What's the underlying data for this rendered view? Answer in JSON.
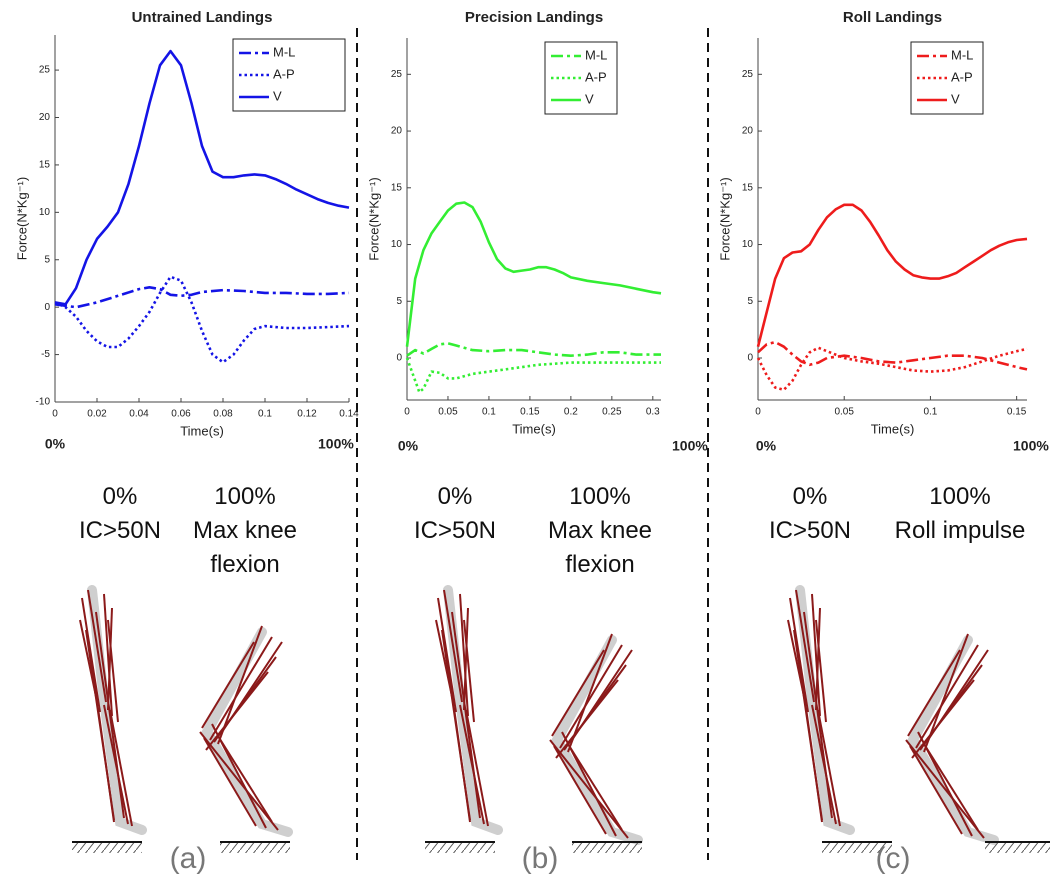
{
  "chart_data": [
    {
      "type": "line",
      "title": "Untrained Landings",
      "xlabel": "Time(s)",
      "ylabel": "Force(N*Kg⁻¹)",
      "annotations": [
        "0%",
        "100%"
      ],
      "xlim": [
        0,
        0.14
      ],
      "xticks": [
        0,
        0.02,
        0.04,
        0.06,
        0.08,
        0.1,
        0.12,
        0.14
      ],
      "ylim": [
        -10,
        28.7
      ],
      "yticks": [
        -10,
        -5,
        0,
        5,
        10,
        15,
        20,
        25
      ],
      "legend": "upper right",
      "series": [
        {
          "name": "M-L",
          "color": "#1414e6",
          "linestyle": "dashdot",
          "x": [
            0,
            0.01,
            0.02,
            0.03,
            0.04,
            0.045,
            0.05,
            0.055,
            0.06,
            0.065,
            0.07,
            0.08,
            0.09,
            0.1,
            0.11,
            0.12,
            0.13,
            0.14
          ],
          "values": [
            0.3,
            0,
            0.5,
            1.2,
            1.9,
            2.1,
            1.9,
            1.3,
            1.2,
            1.3,
            1.6,
            1.8,
            1.7,
            1.5,
            1.5,
            1.4,
            1.4,
            1.5
          ]
        },
        {
          "name": "A-P",
          "color": "#1414e6",
          "linestyle": "dotted",
          "x": [
            0,
            0.005,
            0.01,
            0.015,
            0.02,
            0.025,
            0.03,
            0.035,
            0.04,
            0.045,
            0.05,
            0.055,
            0.06,
            0.065,
            0.07,
            0.075,
            0.08,
            0.085,
            0.09,
            0.095,
            0.1,
            0.11,
            0.12,
            0.13,
            0.14
          ],
          "values": [
            0.5,
            0,
            -1,
            -2.5,
            -3.6,
            -4.2,
            -4.2,
            -3.3,
            -2,
            -0.5,
            1.5,
            3.2,
            2.8,
            0.5,
            -2.5,
            -5,
            -5.8,
            -5,
            -3.5,
            -2.3,
            -2,
            -2.2,
            -2.2,
            -2.1,
            -2
          ]
        },
        {
          "name": "V",
          "color": "#1414e6",
          "linestyle": "solid",
          "x": [
            0,
            0.005,
            0.01,
            0.015,
            0.02,
            0.025,
            0.03,
            0.035,
            0.04,
            0.045,
            0.05,
            0.055,
            0.06,
            0.065,
            0.07,
            0.075,
            0.08,
            0.085,
            0.09,
            0.095,
            0.1,
            0.105,
            0.11,
            0.115,
            0.12,
            0.125,
            0.13,
            0.135,
            0.14
          ],
          "values": [
            0.5,
            0.3,
            2,
            5,
            7.2,
            8.5,
            10,
            13,
            17,
            21.5,
            25.5,
            27,
            25.5,
            21.5,
            17,
            14.3,
            13.7,
            13.7,
            13.9,
            14,
            13.9,
            13.5,
            13,
            12.4,
            11.9,
            11.4,
            11,
            10.7,
            10.5
          ]
        }
      ]
    },
    {
      "type": "line",
      "title": "Precision Landings",
      "xlabel": "Time(s)",
      "ylabel": "Force(N*Kg⁻¹)",
      "annotations": [
        "0%",
        "100%"
      ],
      "xlim": [
        0,
        0.31
      ],
      "xticks": [
        0,
        0.05,
        0.1,
        0.15,
        0.2,
        0.25,
        0.3
      ],
      "ylim": [
        -3.7,
        28.2
      ],
      "yticks": [
        0,
        5,
        10,
        15,
        20,
        25
      ],
      "legend": "upper right",
      "series": [
        {
          "name": "M-L",
          "color": "#33ee33",
          "linestyle": "dashdot",
          "x": [
            0,
            0.01,
            0.02,
            0.03,
            0.04,
            0.05,
            0.06,
            0.08,
            0.1,
            0.12,
            0.14,
            0.16,
            0.18,
            0.2,
            0.22,
            0.24,
            0.26,
            0.28,
            0.31
          ],
          "values": [
            0.2,
            0.7,
            0.4,
            0.8,
            1.2,
            1.3,
            1.1,
            0.7,
            0.6,
            0.7,
            0.7,
            0.5,
            0.3,
            0.2,
            0.3,
            0.5,
            0.5,
            0.3,
            0.3
          ]
        },
        {
          "name": "A-P",
          "color": "#33ee33",
          "linestyle": "dotted",
          "x": [
            0,
            0.01,
            0.015,
            0.02,
            0.03,
            0.04,
            0.05,
            0.06,
            0.08,
            0.1,
            0.12,
            0.14,
            0.16,
            0.2,
            0.25,
            0.31
          ],
          "values": [
            0,
            -2,
            -3,
            -2.7,
            -1.2,
            -1.3,
            -1.8,
            -1.8,
            -1.4,
            -1.2,
            -1,
            -0.8,
            -0.6,
            -0.4,
            -0.4,
            -0.4
          ]
        },
        {
          "name": "V",
          "color": "#33ee33",
          "linestyle": "solid",
          "x": [
            0,
            0.01,
            0.02,
            0.03,
            0.04,
            0.05,
            0.06,
            0.07,
            0.08,
            0.09,
            0.1,
            0.11,
            0.12,
            0.13,
            0.14,
            0.15,
            0.16,
            0.17,
            0.18,
            0.19,
            0.2,
            0.22,
            0.24,
            0.26,
            0.28,
            0.3,
            0.31
          ],
          "values": [
            1,
            7,
            9.5,
            11,
            12,
            13,
            13.6,
            13.7,
            13.3,
            12,
            10.2,
            8.7,
            7.9,
            7.6,
            7.7,
            7.8,
            8,
            8,
            7.8,
            7.5,
            7.1,
            6.8,
            6.6,
            6.4,
            6.1,
            5.8,
            5.7
          ]
        }
      ]
    },
    {
      "type": "line",
      "title": "Roll Landings",
      "xlabel": "Time(s)",
      "ylabel": "Force(N*Kg⁻¹)",
      "annotations": [
        "0%",
        "100%"
      ],
      "xlim": [
        0,
        0.156
      ],
      "xticks": [
        0,
        0.05,
        0.1,
        0.15
      ],
      "ylim": [
        -3.7,
        28.2
      ],
      "yticks": [
        0,
        5,
        10,
        15,
        20,
        25
      ],
      "legend": "upper right",
      "series": [
        {
          "name": "M-L",
          "color": "#ee1c1c",
          "linestyle": "dashdot",
          "x": [
            0,
            0.005,
            0.01,
            0.015,
            0.02,
            0.025,
            0.03,
            0.035,
            0.04,
            0.05,
            0.06,
            0.07,
            0.08,
            0.09,
            0.1,
            0.11,
            0.12,
            0.13,
            0.14,
            0.15,
            0.156
          ],
          "values": [
            0.5,
            1.2,
            1.4,
            1,
            0.3,
            -0.3,
            -0.6,
            -0.4,
            0,
            0.2,
            0,
            -0.3,
            -0.4,
            -0.2,
            0,
            0.2,
            0.2,
            0,
            -0.4,
            -0.8,
            -1
          ]
        },
        {
          "name": "A-P",
          "color": "#ee1c1c",
          "linestyle": "dotted",
          "x": [
            0,
            0.005,
            0.01,
            0.015,
            0.02,
            0.025,
            0.03,
            0.035,
            0.04,
            0.05,
            0.06,
            0.07,
            0.08,
            0.09,
            0.1,
            0.11,
            0.12,
            0.13,
            0.14,
            0.15,
            0.156
          ],
          "values": [
            0,
            -1.5,
            -2.6,
            -2.8,
            -2,
            -0.6,
            0.5,
            0.9,
            0.6,
            0,
            -0.3,
            -0.5,
            -0.8,
            -1.1,
            -1.2,
            -1.1,
            -0.8,
            -0.3,
            0.2,
            0.6,
            0.8
          ]
        },
        {
          "name": "V",
          "color": "#ee1c1c",
          "linestyle": "solid",
          "x": [
            0,
            0.005,
            0.01,
            0.015,
            0.02,
            0.025,
            0.03,
            0.035,
            0.04,
            0.045,
            0.05,
            0.055,
            0.06,
            0.065,
            0.07,
            0.075,
            0.08,
            0.085,
            0.09,
            0.095,
            0.1,
            0.105,
            0.11,
            0.115,
            0.12,
            0.125,
            0.13,
            0.135,
            0.14,
            0.145,
            0.15,
            0.156
          ],
          "values": [
            1,
            4,
            7,
            8.8,
            9.3,
            9.4,
            10,
            11.3,
            12.4,
            13.1,
            13.5,
            13.5,
            13,
            12,
            10.8,
            9.5,
            8.5,
            7.8,
            7.3,
            7.1,
            7,
            7,
            7.2,
            7.5,
            8,
            8.5,
            9,
            9.5,
            9.9,
            10.2,
            10.4,
            10.5
          ]
        }
      ]
    }
  ],
  "panels": [
    {
      "label": "(a)",
      "frames": [
        {
          "percent": "0%",
          "event": "IC>50N"
        },
        {
          "percent": "100%",
          "event": "Max knee flexion"
        }
      ]
    },
    {
      "label": "(b)",
      "frames": [
        {
          "percent": "0%",
          "event": "IC>50N"
        },
        {
          "percent": "100%",
          "event": "Max knee flexion"
        }
      ]
    },
    {
      "label": "(c)",
      "frames": [
        {
          "percent": "0%",
          "event": "IC>50N"
        },
        {
          "percent": "100%",
          "event": "Roll impulse"
        }
      ]
    }
  ]
}
